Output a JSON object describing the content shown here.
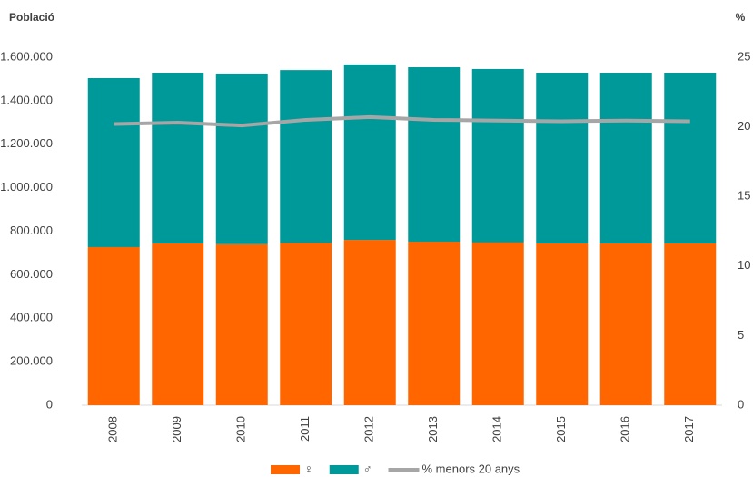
{
  "chart_data": {
    "type": "bar",
    "stacked": true,
    "ylabel": "Població",
    "y2label": "%",
    "categories": [
      "2008",
      "2009",
      "2010",
      "2011",
      "2012",
      "2013",
      "2014",
      "2015",
      "2016",
      "2017"
    ],
    "series": [
      {
        "name": "♀",
        "color": "#ff6600",
        "values": [
          727000,
          744000,
          740000,
          746000,
          760000,
          752000,
          748000,
          744000,
          744000,
          744000
        ]
      },
      {
        "name": "♂",
        "color": "#009999",
        "values": [
          777000,
          785000,
          785000,
          795000,
          807000,
          802000,
          798000,
          785000,
          785000,
          785000
        ]
      },
      {
        "name": "% menors 20 anys",
        "type": "line",
        "axis": "y2",
        "color": "#a6a6a6",
        "values": [
          20.2,
          20.3,
          20.1,
          20.5,
          20.7,
          20.5,
          20.45,
          20.4,
          20.45,
          20.4
        ]
      }
    ],
    "ylim": [
      0,
      1600000
    ],
    "yticks": [
      0,
      {
        "value": 200000,
        "label": "200.000"
      },
      {
        "value": 400000,
        "label": "400.000"
      },
      {
        "value": 600000,
        "label": "600.000"
      },
      {
        "value": 800000,
        "label": "800.000"
      },
      {
        "value": 1000000,
        "label": "1.000.000"
      },
      {
        "value": 1200000,
        "label": "1.200.000"
      },
      {
        "value": 1400000,
        "label": "1.400.000"
      },
      {
        "value": 1600000,
        "label": "1.600.000"
      }
    ],
    "y2lim": [
      0,
      25
    ],
    "y2ticks": [
      0,
      5,
      10,
      15,
      20,
      25
    ],
    "grid": false,
    "legend": "bottom"
  }
}
